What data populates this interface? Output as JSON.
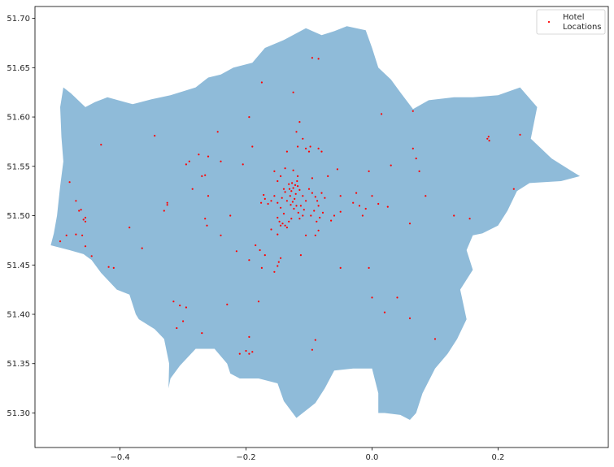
{
  "chart_data": {
    "type": "scatter",
    "title": "",
    "xlabel": "",
    "ylabel": "",
    "xlim": [
      -0.535,
      0.375
    ],
    "ylim": [
      51.265,
      51.712
    ],
    "xticks": [
      -0.4,
      -0.2,
      0.0,
      0.2
    ],
    "xtick_labels": [
      "−0.4",
      "−0.2",
      "0.0",
      "0.2"
    ],
    "yticks": [
      51.3,
      51.35,
      51.4,
      51.45,
      51.5,
      51.55,
      51.6,
      51.65,
      51.7
    ],
    "ytick_labels": [
      "51.30",
      "51.35",
      "51.40",
      "51.45",
      "51.50",
      "51.55",
      "51.60",
      "51.65",
      "51.70"
    ],
    "grid": false,
    "legend": {
      "placement": "top-right",
      "entries": [
        "Hotel\nLocations"
      ]
    },
    "boundary": {
      "name": "",
      "color": "#8fbbd9",
      "outline": [
        [
          -0.49,
          51.63
        ],
        [
          -0.478,
          51.624
        ],
        [
          -0.455,
          51.61
        ],
        [
          -0.44,
          51.615
        ],
        [
          -0.42,
          51.62
        ],
        [
          -0.38,
          51.613
        ],
        [
          -0.35,
          51.618
        ],
        [
          -0.32,
          51.622
        ],
        [
          -0.28,
          51.63
        ],
        [
          -0.26,
          51.64
        ],
        [
          -0.24,
          51.643
        ],
        [
          -0.22,
          51.65
        ],
        [
          -0.19,
          51.655
        ],
        [
          -0.17,
          51.67
        ],
        [
          -0.14,
          51.678
        ],
        [
          -0.105,
          51.69
        ],
        [
          -0.08,
          51.683
        ],
        [
          -0.06,
          51.687
        ],
        [
          -0.04,
          51.692
        ],
        [
          -0.01,
          51.688
        ],
        [
          0.0,
          51.67
        ],
        [
          0.01,
          51.65
        ],
        [
          0.03,
          51.638
        ],
        [
          0.045,
          51.625
        ],
        [
          0.065,
          51.608
        ],
        [
          0.09,
          51.617
        ],
        [
          0.13,
          51.62
        ],
        [
          0.16,
          51.62
        ],
        [
          0.2,
          51.622
        ],
        [
          0.235,
          51.63
        ],
        [
          0.262,
          51.61
        ],
        [
          0.252,
          51.578
        ],
        [
          0.285,
          51.558
        ],
        [
          0.315,
          51.546
        ],
        [
          0.33,
          51.54
        ],
        [
          0.3,
          51.535
        ],
        [
          0.25,
          51.533
        ],
        [
          0.23,
          51.525
        ],
        [
          0.215,
          51.505
        ],
        [
          0.2,
          51.49
        ],
        [
          0.175,
          51.482
        ],
        [
          0.16,
          51.48
        ],
        [
          0.15,
          51.465
        ],
        [
          0.16,
          51.445
        ],
        [
          0.14,
          51.425
        ],
        [
          0.15,
          51.395
        ],
        [
          0.135,
          51.375
        ],
        [
          0.12,
          51.36
        ],
        [
          0.1,
          51.345
        ],
        [
          0.08,
          51.32
        ],
        [
          0.07,
          51.3
        ],
        [
          0.06,
          51.293
        ],
        [
          0.045,
          51.298
        ],
        [
          0.02,
          51.3
        ],
        [
          0.01,
          51.3
        ],
        [
          0.01,
          51.32
        ],
        [
          0.0,
          51.345
        ],
        [
          -0.03,
          51.345
        ],
        [
          -0.06,
          51.343
        ],
        [
          -0.075,
          51.325
        ],
        [
          -0.09,
          51.31
        ],
        [
          -0.12,
          51.295
        ],
        [
          -0.14,
          51.312
        ],
        [
          -0.15,
          51.33
        ],
        [
          -0.18,
          51.335
        ],
        [
          -0.21,
          51.335
        ],
        [
          -0.225,
          51.34
        ],
        [
          -0.23,
          51.35
        ],
        [
          -0.25,
          51.365
        ],
        [
          -0.28,
          51.365
        ],
        [
          -0.305,
          51.348
        ],
        [
          -0.32,
          51.335
        ],
        [
          -0.323,
          51.325
        ],
        [
          -0.322,
          51.35
        ],
        [
          -0.33,
          51.375
        ],
        [
          -0.345,
          51.385
        ],
        [
          -0.37,
          51.395
        ],
        [
          -0.375,
          51.4
        ],
        [
          -0.385,
          51.42
        ],
        [
          -0.405,
          51.425
        ],
        [
          -0.43,
          51.442
        ],
        [
          -0.445,
          51.455
        ],
        [
          -0.458,
          51.461
        ],
        [
          -0.48,
          51.465
        ],
        [
          -0.51,
          51.47
        ],
        [
          -0.505,
          51.482
        ],
        [
          -0.5,
          51.5
        ],
        [
          -0.495,
          51.53
        ],
        [
          -0.49,
          51.555
        ],
        [
          -0.493,
          51.58
        ],
        [
          -0.495,
          51.61
        ],
        [
          -0.49,
          51.63
        ]
      ]
    },
    "series": [
      {
        "name": "Hotel\nLocations",
        "color": "#ff0000",
        "points": [
          [
            -0.125,
            51.528
          ],
          [
            -0.128,
            51.525
          ],
          [
            -0.121,
            51.522
          ],
          [
            -0.118,
            51.53
          ],
          [
            -0.13,
            51.52
          ],
          [
            -0.123,
            51.517
          ],
          [
            -0.126,
            51.514
          ],
          [
            -0.115,
            51.526
          ],
          [
            -0.12,
            51.51
          ],
          [
            -0.132,
            51.532
          ],
          [
            -0.11,
            51.52
          ],
          [
            -0.135,
            51.515
          ],
          [
            -0.124,
            51.507
          ],
          [
            -0.117,
            51.503
          ],
          [
            -0.127,
            51.533
          ],
          [
            -0.105,
            51.515
          ],
          [
            -0.113,
            51.51
          ],
          [
            -0.129,
            51.511
          ],
          [
            -0.138,
            51.524
          ],
          [
            -0.108,
            51.506
          ],
          [
            -0.143,
            51.518
          ],
          [
            -0.119,
            51.535
          ],
          [
            -0.131,
            51.527
          ],
          [
            -0.122,
            51.531
          ],
          [
            -0.1,
            51.527
          ],
          [
            -0.095,
            51.523
          ],
          [
            -0.09,
            51.519
          ],
          [
            -0.087,
            51.515
          ],
          [
            -0.085,
            51.51
          ],
          [
            -0.092,
            51.505
          ],
          [
            -0.08,
            51.523
          ],
          [
            -0.075,
            51.518
          ],
          [
            -0.083,
            51.498
          ],
          [
            -0.097,
            51.5
          ],
          [
            -0.088,
            51.494
          ],
          [
            -0.078,
            51.503
          ],
          [
            -0.15,
            51.513
          ],
          [
            -0.155,
            51.52
          ],
          [
            -0.16,
            51.515
          ],
          [
            -0.165,
            51.512
          ],
          [
            -0.17,
            51.517
          ],
          [
            -0.172,
            51.521
          ],
          [
            -0.176,
            51.513
          ],
          [
            -0.145,
            51.508
          ],
          [
            -0.14,
            51.502
          ],
          [
            -0.15,
            51.498
          ],
          [
            -0.147,
            51.494
          ],
          [
            -0.142,
            51.492
          ],
          [
            -0.138,
            51.49
          ],
          [
            -0.145,
            51.49
          ],
          [
            -0.135,
            51.488
          ],
          [
            -0.132,
            51.494
          ],
          [
            -0.128,
            51.497
          ],
          [
            -0.115,
            51.497
          ],
          [
            -0.11,
            51.5
          ],
          [
            -0.15,
            51.481
          ],
          [
            -0.16,
            51.486
          ],
          [
            -0.14,
            51.527
          ],
          [
            -0.15,
            51.535
          ],
          [
            -0.145,
            51.54
          ],
          [
            -0.155,
            51.545
          ],
          [
            -0.138,
            51.548
          ],
          [
            -0.125,
            51.546
          ],
          [
            -0.118,
            51.54
          ],
          [
            -0.095,
            51.538
          ],
          [
            -0.1,
            51.565
          ],
          [
            -0.105,
            51.568
          ],
          [
            -0.098,
            51.57
          ],
          [
            -0.11,
            51.578
          ],
          [
            -0.118,
            51.57
          ],
          [
            -0.135,
            51.565
          ],
          [
            -0.12,
            51.585
          ],
          [
            -0.115,
            51.595
          ],
          [
            -0.125,
            51.625
          ],
          [
            -0.095,
            51.66
          ],
          [
            -0.085,
            51.659
          ],
          [
            -0.175,
            51.635
          ],
          [
            -0.195,
            51.6
          ],
          [
            -0.19,
            51.57
          ],
          [
            -0.205,
            51.552
          ],
          [
            -0.24,
            51.555
          ],
          [
            -0.26,
            51.56
          ],
          [
            -0.275,
            51.562
          ],
          [
            -0.29,
            51.555
          ],
          [
            -0.295,
            51.552
          ],
          [
            -0.285,
            51.527
          ],
          [
            -0.27,
            51.54
          ],
          [
            -0.265,
            51.541
          ],
          [
            -0.245,
            51.585
          ],
          [
            -0.345,
            51.581
          ],
          [
            -0.43,
            51.572
          ],
          [
            -0.48,
            51.534
          ],
          [
            -0.47,
            51.515
          ],
          [
            -0.465,
            51.505
          ],
          [
            -0.462,
            51.506
          ],
          [
            -0.455,
            51.498
          ],
          [
            -0.455,
            51.494
          ],
          [
            -0.458,
            51.496
          ],
          [
            -0.46,
            51.48
          ],
          [
            -0.47,
            51.481
          ],
          [
            -0.485,
            51.48
          ],
          [
            -0.495,
            51.474
          ],
          [
            -0.455,
            51.469
          ],
          [
            -0.445,
            51.459
          ],
          [
            -0.418,
            51.448
          ],
          [
            -0.41,
            51.447
          ],
          [
            -0.385,
            51.488
          ],
          [
            -0.365,
            51.467
          ],
          [
            -0.325,
            51.511
          ],
          [
            -0.33,
            51.505
          ],
          [
            -0.325,
            51.513
          ],
          [
            -0.265,
            51.497
          ],
          [
            -0.262,
            51.49
          ],
          [
            -0.24,
            51.48
          ],
          [
            -0.225,
            51.5
          ],
          [
            -0.26,
            51.52
          ],
          [
            -0.215,
            51.464
          ],
          [
            -0.195,
            51.455
          ],
          [
            -0.185,
            51.47
          ],
          [
            -0.178,
            51.465
          ],
          [
            -0.175,
            51.447
          ],
          [
            -0.17,
            51.46
          ],
          [
            -0.155,
            51.443
          ],
          [
            -0.148,
            51.453
          ],
          [
            -0.145,
            51.457
          ],
          [
            -0.15,
            51.449
          ],
          [
            -0.113,
            51.46
          ],
          [
            -0.105,
            51.48
          ],
          [
            -0.09,
            51.48
          ],
          [
            -0.085,
            51.485
          ],
          [
            -0.065,
            51.495
          ],
          [
            -0.06,
            51.5
          ],
          [
            -0.05,
            51.504
          ],
          [
            -0.05,
            51.52
          ],
          [
            -0.03,
            51.513
          ],
          [
            -0.025,
            51.523
          ],
          [
            -0.02,
            51.51
          ],
          [
            -0.015,
            51.5
          ],
          [
            -0.01,
            51.507
          ],
          [
            0.0,
            51.52
          ],
          [
            0.01,
            51.512
          ],
          [
            0.025,
            51.509
          ],
          [
            0.06,
            51.492
          ],
          [
            0.085,
            51.52
          ],
          [
            0.13,
            51.5
          ],
          [
            0.155,
            51.497
          ],
          [
            0.225,
            51.527
          ],
          [
            0.185,
            51.58
          ],
          [
            0.183,
            51.578
          ],
          [
            0.186,
            51.576
          ],
          [
            0.235,
            51.582
          ],
          [
            0.07,
            51.558
          ],
          [
            0.075,
            51.545
          ],
          [
            0.065,
            51.568
          ],
          [
            0.03,
            51.551
          ],
          [
            0.015,
            51.603
          ],
          [
            0.065,
            51.606
          ],
          [
            -0.005,
            51.545
          ],
          [
            -0.055,
            51.547
          ],
          [
            -0.07,
            51.54
          ],
          [
            -0.08,
            51.565
          ],
          [
            -0.085,
            51.568
          ],
          [
            -0.315,
            51.413
          ],
          [
            -0.305,
            51.409
          ],
          [
            -0.295,
            51.407
          ],
          [
            -0.23,
            51.41
          ],
          [
            -0.18,
            51.413
          ],
          [
            -0.31,
            51.386
          ],
          [
            -0.3,
            51.393
          ],
          [
            -0.27,
            51.381
          ],
          [
            -0.195,
            51.377
          ],
          [
            -0.2,
            51.363
          ],
          [
            -0.195,
            51.36
          ],
          [
            -0.21,
            51.36
          ],
          [
            -0.19,
            51.362
          ],
          [
            -0.095,
            51.364
          ],
          [
            -0.09,
            51.374
          ],
          [
            0.0,
            51.417
          ],
          [
            0.02,
            51.402
          ],
          [
            0.04,
            51.417
          ],
          [
            0.06,
            51.396
          ],
          [
            0.1,
            51.375
          ],
          [
            -0.005,
            51.447
          ],
          [
            -0.05,
            51.447
          ]
        ]
      }
    ]
  }
}
